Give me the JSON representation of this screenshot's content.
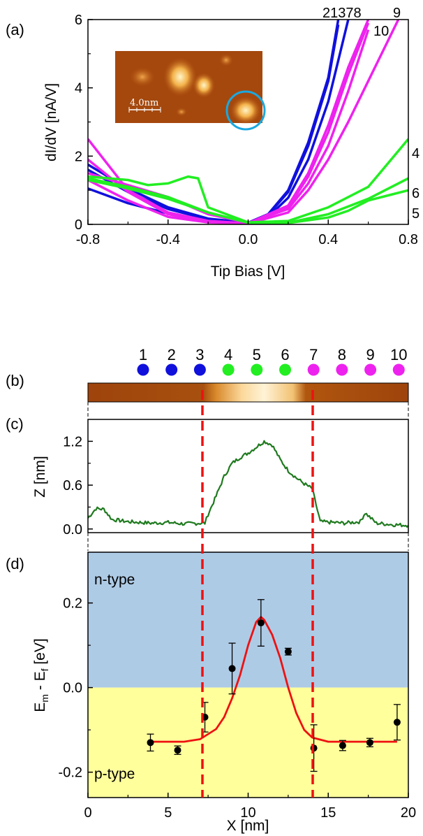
{
  "panels": {
    "a": {
      "label": "(a)",
      "xlabel": "Tip Bias [V]",
      "ylabel": "dI/dV [nA/V]",
      "xlim": [
        -0.8,
        0.8
      ],
      "ylim": [
        0,
        6
      ],
      "x_ticks": [
        "-0.8",
        "-0.4",
        "0.0",
        "0.4",
        "0.8"
      ],
      "y_ticks": [
        "0",
        "2",
        "4",
        "6"
      ],
      "top_labels": {
        "left": "21378",
        "right": "9",
        "second": "10"
      },
      "right_labels": [
        "4",
        "6",
        "5"
      ],
      "inset": {
        "scale_label": "4.0nm"
      }
    },
    "b": {
      "label": "(b)",
      "points": [
        "1",
        "2",
        "3",
        "4",
        "5",
        "6",
        "7",
        "8",
        "9",
        "10"
      ],
      "point_colors": [
        "#1010dd",
        "#1010dd",
        "#1010dd",
        "#22ee22",
        "#22ee22",
        "#22ee22",
        "#ee22ee",
        "#ee22ee",
        "#ee22ee",
        "#ee22ee"
      ]
    },
    "c": {
      "label": "(c)",
      "ylabel": "Z [nm]",
      "y_ticks": [
        "0.0",
        "0.6",
        "1.2"
      ],
      "line_color": "#1f7a1f"
    },
    "d": {
      "label": "(d)",
      "ylabel_main": "E",
      "ylabel_sub1": "m",
      "ylabel_mid": " - E",
      "ylabel_sub2": "f",
      "ylabel_tail": " [eV]",
      "xlabel": "X [nm]",
      "x_ticks": [
        "0",
        "5",
        "10",
        "15",
        "20"
      ],
      "y_ticks": [
        "-0.2",
        "0.0",
        "0.2"
      ],
      "region_top": "n-type",
      "region_bottom": "p-type",
      "region_top_color": "#aecbe6",
      "region_bottom_color": "#ffff9c"
    }
  },
  "colors": {
    "blue": "#1010dd",
    "magenta": "#ee22ee",
    "green": "#22ee22",
    "fit": "#ee1111",
    "divider": "#ee1111"
  },
  "chart_data": [
    {
      "type": "line",
      "panel": "a",
      "xlabel": "Tip Bias [V]",
      "ylabel": "dI/dV [nA/V]",
      "xlim": [
        -0.8,
        0.8
      ],
      "ylim": [
        0,
        6
      ],
      "series": [
        {
          "name": "1",
          "color": "#1010dd",
          "x": [
            -0.8,
            -0.6,
            -0.4,
            -0.2,
            0.0,
            0.1,
            0.2,
            0.3,
            0.4,
            0.45
          ],
          "y": [
            1.75,
            1.05,
            0.5,
            0.17,
            0.05,
            0.3,
            1.0,
            2.4,
            4.3,
            6.0
          ]
        },
        {
          "name": "2",
          "color": "#1010dd",
          "x": [
            -0.8,
            -0.6,
            -0.4,
            -0.2,
            0.0,
            0.1,
            0.2,
            0.3,
            0.4,
            0.45
          ],
          "y": [
            1.6,
            0.95,
            0.45,
            0.15,
            0.05,
            0.28,
            0.95,
            2.3,
            4.2,
            5.85
          ]
        },
        {
          "name": "3",
          "color": "#1010dd",
          "x": [
            -0.8,
            -0.6,
            -0.4,
            -0.2,
            0.0,
            0.1,
            0.2,
            0.3,
            0.4,
            0.5
          ],
          "y": [
            1.05,
            0.62,
            0.32,
            0.12,
            0.05,
            0.22,
            0.78,
            1.9,
            3.6,
            6.0
          ]
        },
        {
          "name": "7",
          "color": "#ee22ee",
          "x": [
            -0.8,
            -0.6,
            -0.4,
            -0.2,
            0.0,
            0.2,
            0.3,
            0.4,
            0.5,
            0.6
          ],
          "y": [
            2.5,
            1.0,
            0.35,
            0.1,
            0.03,
            0.55,
            1.5,
            2.9,
            4.6,
            6.0
          ]
        },
        {
          "name": "8",
          "color": "#ee22ee",
          "x": [
            -0.8,
            -0.6,
            -0.4,
            -0.2,
            0.0,
            0.2,
            0.3,
            0.4,
            0.5,
            0.6
          ],
          "y": [
            1.9,
            0.95,
            0.3,
            0.08,
            0.03,
            0.5,
            1.4,
            2.7,
            4.4,
            5.9
          ]
        },
        {
          "name": "9",
          "color": "#ee22ee",
          "x": [
            -0.8,
            -0.6,
            -0.4,
            -0.2,
            0.0,
            0.2,
            0.3,
            0.4,
            0.5,
            0.6,
            0.75
          ],
          "y": [
            1.3,
            0.7,
            0.22,
            0.06,
            0.02,
            0.35,
            1.0,
            1.9,
            3.0,
            4.2,
            6.0
          ]
        },
        {
          "name": "10",
          "color": "#ee22ee",
          "x": [
            -0.8,
            -0.6,
            -0.4,
            -0.2,
            0.0,
            0.2,
            0.3,
            0.4,
            0.5,
            0.6
          ],
          "y": [
            1.5,
            1.15,
            0.8,
            0.3,
            0.05,
            0.45,
            1.2,
            2.3,
            3.9,
            5.7
          ]
        },
        {
          "name": "4",
          "color": "#22ee22",
          "x": [
            -0.8,
            -0.6,
            -0.5,
            -0.4,
            -0.3,
            -0.25,
            -0.2,
            0.0,
            0.2,
            0.4,
            0.6,
            0.8
          ],
          "y": [
            1.4,
            1.3,
            1.15,
            1.2,
            1.4,
            1.35,
            0.5,
            0.06,
            0.1,
            0.5,
            1.1,
            2.5
          ]
        },
        {
          "name": "5",
          "color": "#22ee22",
          "x": [
            -0.8,
            -0.6,
            -0.4,
            -0.2,
            0.0,
            0.2,
            0.4,
            0.5,
            0.6,
            0.7,
            0.8
          ],
          "y": [
            1.3,
            1.05,
            0.75,
            0.35,
            0.05,
            0.04,
            0.2,
            0.4,
            0.7,
            0.85,
            1.0
          ]
        },
        {
          "name": "6",
          "color": "#22ee22",
          "x": [
            -0.8,
            -0.6,
            -0.4,
            -0.2,
            0.0,
            0.2,
            0.4,
            0.6,
            0.8
          ],
          "y": [
            1.35,
            1.1,
            0.8,
            0.35,
            0.05,
            0.05,
            0.3,
            0.75,
            1.35
          ]
        }
      ]
    },
    {
      "type": "line",
      "panel": "c",
      "ylabel": "Z [nm]",
      "xlim": [
        0,
        20
      ],
      "ylim": [
        -0.05,
        1.5
      ],
      "series": [
        {
          "x": [
            0,
            0.5,
            1.0,
            1.5,
            2.5,
            4,
            5,
            6,
            7,
            7.3,
            7.5,
            8,
            8.5,
            9,
            9.5,
            10,
            10.5,
            11,
            11.5,
            12,
            12.5,
            13,
            13.5,
            14,
            14.5,
            16,
            17,
            17.3,
            18,
            19,
            20
          ],
          "y": [
            0.15,
            0.28,
            0.27,
            0.13,
            0.1,
            0.08,
            0.09,
            0.07,
            0.08,
            0.08,
            0.2,
            0.45,
            0.72,
            0.9,
            0.98,
            1.04,
            1.12,
            1.2,
            1.15,
            0.95,
            0.8,
            0.7,
            0.62,
            0.55,
            0.1,
            0.08,
            0.1,
            0.22,
            0.08,
            0.06,
            0.05
          ]
        }
      ]
    },
    {
      "type": "scatter",
      "panel": "d",
      "xlabel": "X [nm]",
      "xlim": [
        0,
        20
      ],
      "ylim": [
        -0.26,
        0.32
      ],
      "series": [
        {
          "name": "data",
          "x": [
            3.9,
            5.6,
            7.3,
            9.0,
            10.8,
            12.5,
            14.1,
            15.9,
            17.6,
            19.3
          ],
          "y": [
            -0.13,
            -0.148,
            -0.07,
            0.045,
            0.153,
            0.085,
            -0.143,
            -0.137,
            -0.13,
            -0.082
          ],
          "err": [
            0.02,
            0.01,
            0.035,
            0.06,
            0.055,
            0.008,
            0.055,
            0.012,
            0.01,
            0.042
          ]
        },
        {
          "name": "fit",
          "type": "line",
          "x": [
            3.9,
            6,
            7,
            8,
            8.5,
            9,
            9.5,
            10,
            10.5,
            10.8,
            11,
            11.5,
            12,
            12.5,
            13,
            13.5,
            14,
            15,
            19.3
          ],
          "y": [
            -0.128,
            -0.128,
            -0.122,
            -0.098,
            -0.07,
            -0.025,
            0.03,
            0.1,
            0.155,
            0.167,
            0.16,
            0.125,
            0.07,
            0.0,
            -0.06,
            -0.1,
            -0.118,
            -0.128,
            -0.128
          ]
        }
      ]
    }
  ]
}
